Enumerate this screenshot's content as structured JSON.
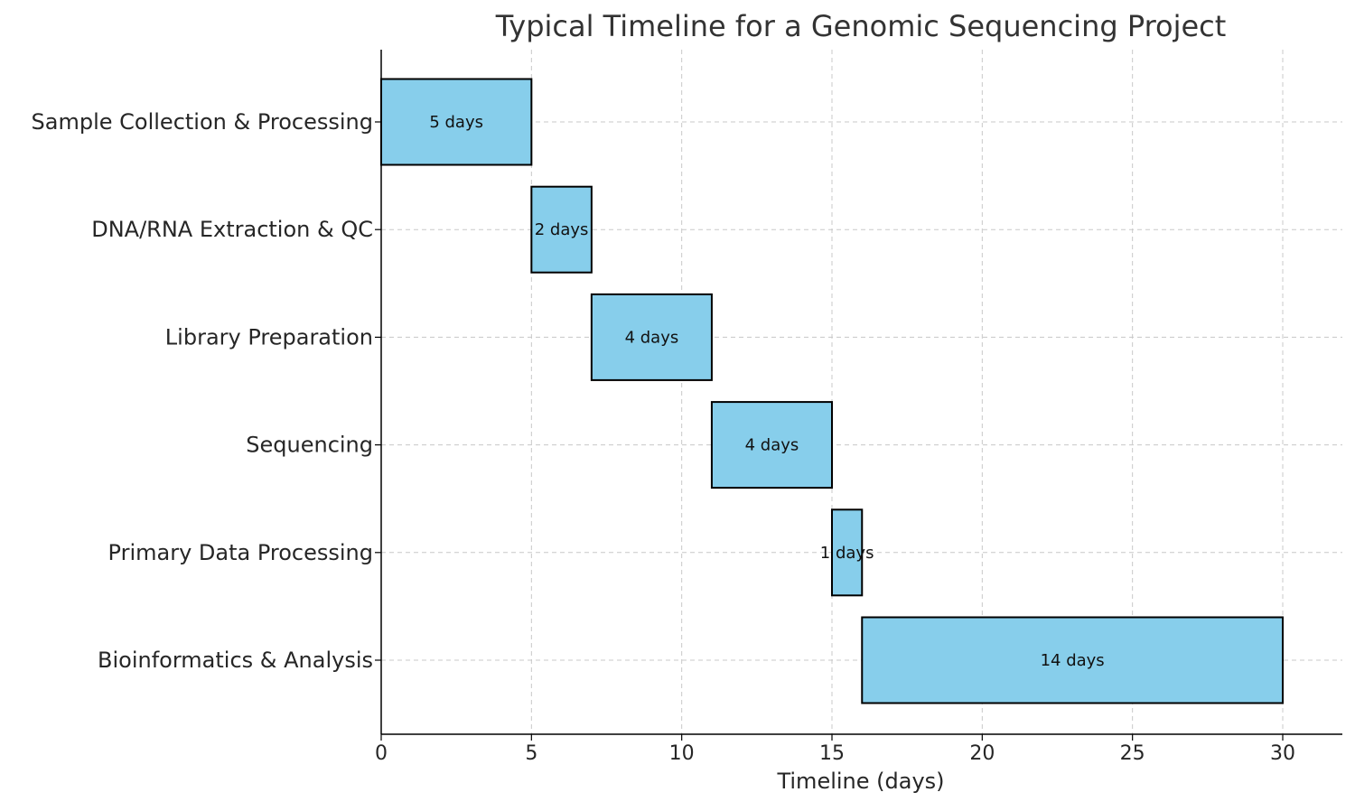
{
  "chart_data": {
    "type": "bar",
    "orientation": "horizontal-gantt",
    "title": "Typical Timeline for a Genomic Sequencing Project",
    "xlabel": "Timeline (days)",
    "ylabel": "",
    "xlim": [
      0,
      32
    ],
    "xticks": [
      0,
      5,
      10,
      15,
      20,
      25,
      30
    ],
    "grid": true,
    "bar_color": "#87ceeb",
    "edge_color": "#000000",
    "tasks": [
      {
        "name": "Sample Collection & Processing",
        "start": 0,
        "duration": 5,
        "label": "5 days"
      },
      {
        "name": "DNA/RNA Extraction & QC",
        "start": 5,
        "duration": 2,
        "label": "2 days"
      },
      {
        "name": "Library Preparation",
        "start": 7,
        "duration": 4,
        "label": "4 days"
      },
      {
        "name": "Sequencing",
        "start": 11,
        "duration": 4,
        "label": "4 days"
      },
      {
        "name": "Primary Data Processing",
        "start": 15,
        "duration": 1,
        "label": "1 days"
      },
      {
        "name": "Bioinformatics & Analysis",
        "start": 16,
        "duration": 14,
        "label": "14 days"
      }
    ]
  }
}
